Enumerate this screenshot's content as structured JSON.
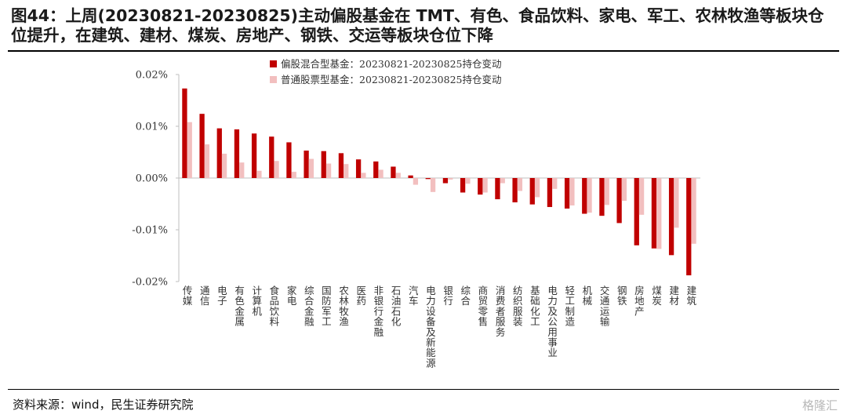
{
  "header": {
    "title": "图44：上周(20230821-20230825)主动偏股基金在 TMT、有色、食品饮料、家电、军工、农林牧渔等板块仓位提升，在建筑、建材、煤炭、房地产、钢铁、交运等板块仓位下降"
  },
  "footer": {
    "source": "资料来源：wind，民生证券研究院",
    "watermark": "格隆汇"
  },
  "colors": {
    "series1": "#C00000",
    "series2": "#F2BFBF",
    "axis": "#BFBFBF"
  },
  "chart_data": {
    "type": "bar",
    "title": "",
    "xlabel": "",
    "ylabel": "",
    "ylim": [
      -0.0002,
      0.0002
    ],
    "yticks": [
      0.0002,
      0.0001,
      0.0,
      -0.0001,
      -0.0002
    ],
    "ytick_labels": [
      "0.02%",
      "0.01%",
      "0.00%",
      "-0.01%",
      "-0.02%"
    ],
    "legend_position": "top-center",
    "categories": [
      "传媒",
      "通信",
      "电子",
      "有色金属",
      "计算机",
      "食品饮料",
      "家电",
      "综合金融",
      "国防军工",
      "农林牧渔",
      "医药",
      "非银行金融",
      "石油石化",
      "汽车",
      "电力设备及新能源",
      "银行",
      "综合",
      "商贸零售",
      "消费者服务",
      "纺织服装",
      "基础化工",
      "电力及公用事业",
      "轻工制造",
      "机械",
      "交通运输",
      "钢铁",
      "房地产",
      "煤炭",
      "建材",
      "建筑"
    ],
    "series": [
      {
        "name": "偏股混合型基金：20230821-20230825持仓变动",
        "values": [
          0.000173,
          0.000124,
          9.6e-05,
          9.4e-05,
          8.6e-05,
          8e-05,
          6.9e-05,
          5.3e-05,
          5.2e-05,
          4.8e-05,
          3.6e-05,
          3.2e-05,
          2.2e-05,
          5e-06,
          -2e-06,
          -1e-05,
          -2.8e-05,
          -3.2e-05,
          -4.1e-05,
          -4.7e-05,
          -5.1e-05,
          -5.6e-05,
          -5.9e-05,
          -6.9e-05,
          -7.3e-05,
          -8.7e-05,
          -0.00013,
          -0.000136,
          -0.000149,
          -0.000188
        ]
      },
      {
        "name": "普通股票型基金：20230821-20230825持仓变动",
        "values": [
          0.000108,
          6.5e-05,
          4.7e-05,
          3e-05,
          1.4e-05,
          3.3e-05,
          1.2e-05,
          3.7e-05,
          2.8e-05,
          2.7e-05,
          1e-05,
          1.6e-05,
          1e-05,
          -1.3e-05,
          -2.7e-05,
          -3e-06,
          -1.1e-05,
          -2.8e-05,
          -1e-05,
          -2.5e-05,
          -3.7e-05,
          -2.1e-05,
          -5.3e-05,
          -6.7e-05,
          -5.2e-05,
          -4.4e-05,
          -7.1e-05,
          -0.000137,
          -9.6e-05,
          -0.000127
        ]
      }
    ]
  }
}
